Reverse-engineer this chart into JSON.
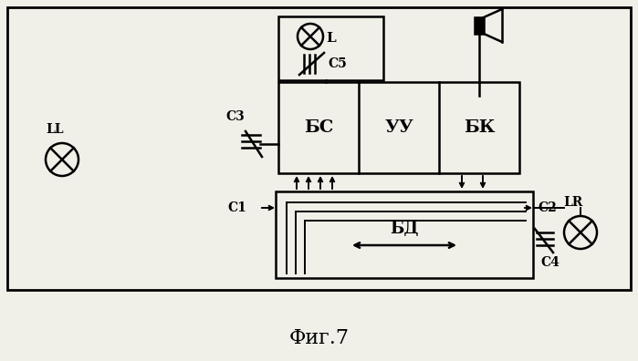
{
  "bg_color": "#f0efe8",
  "fig_caption": "Фиг.7",
  "label_BS": "БС",
  "label_UU": "УУ",
  "label_BK": "БК",
  "label_BD": "БД",
  "label_L": "L",
  "label_C5": "С5",
  "label_C3": "С3",
  "label_C1": "С1",
  "label_C2": "С2",
  "label_C4": "С4",
  "label_LL": "LL",
  "label_LR": "LR"
}
